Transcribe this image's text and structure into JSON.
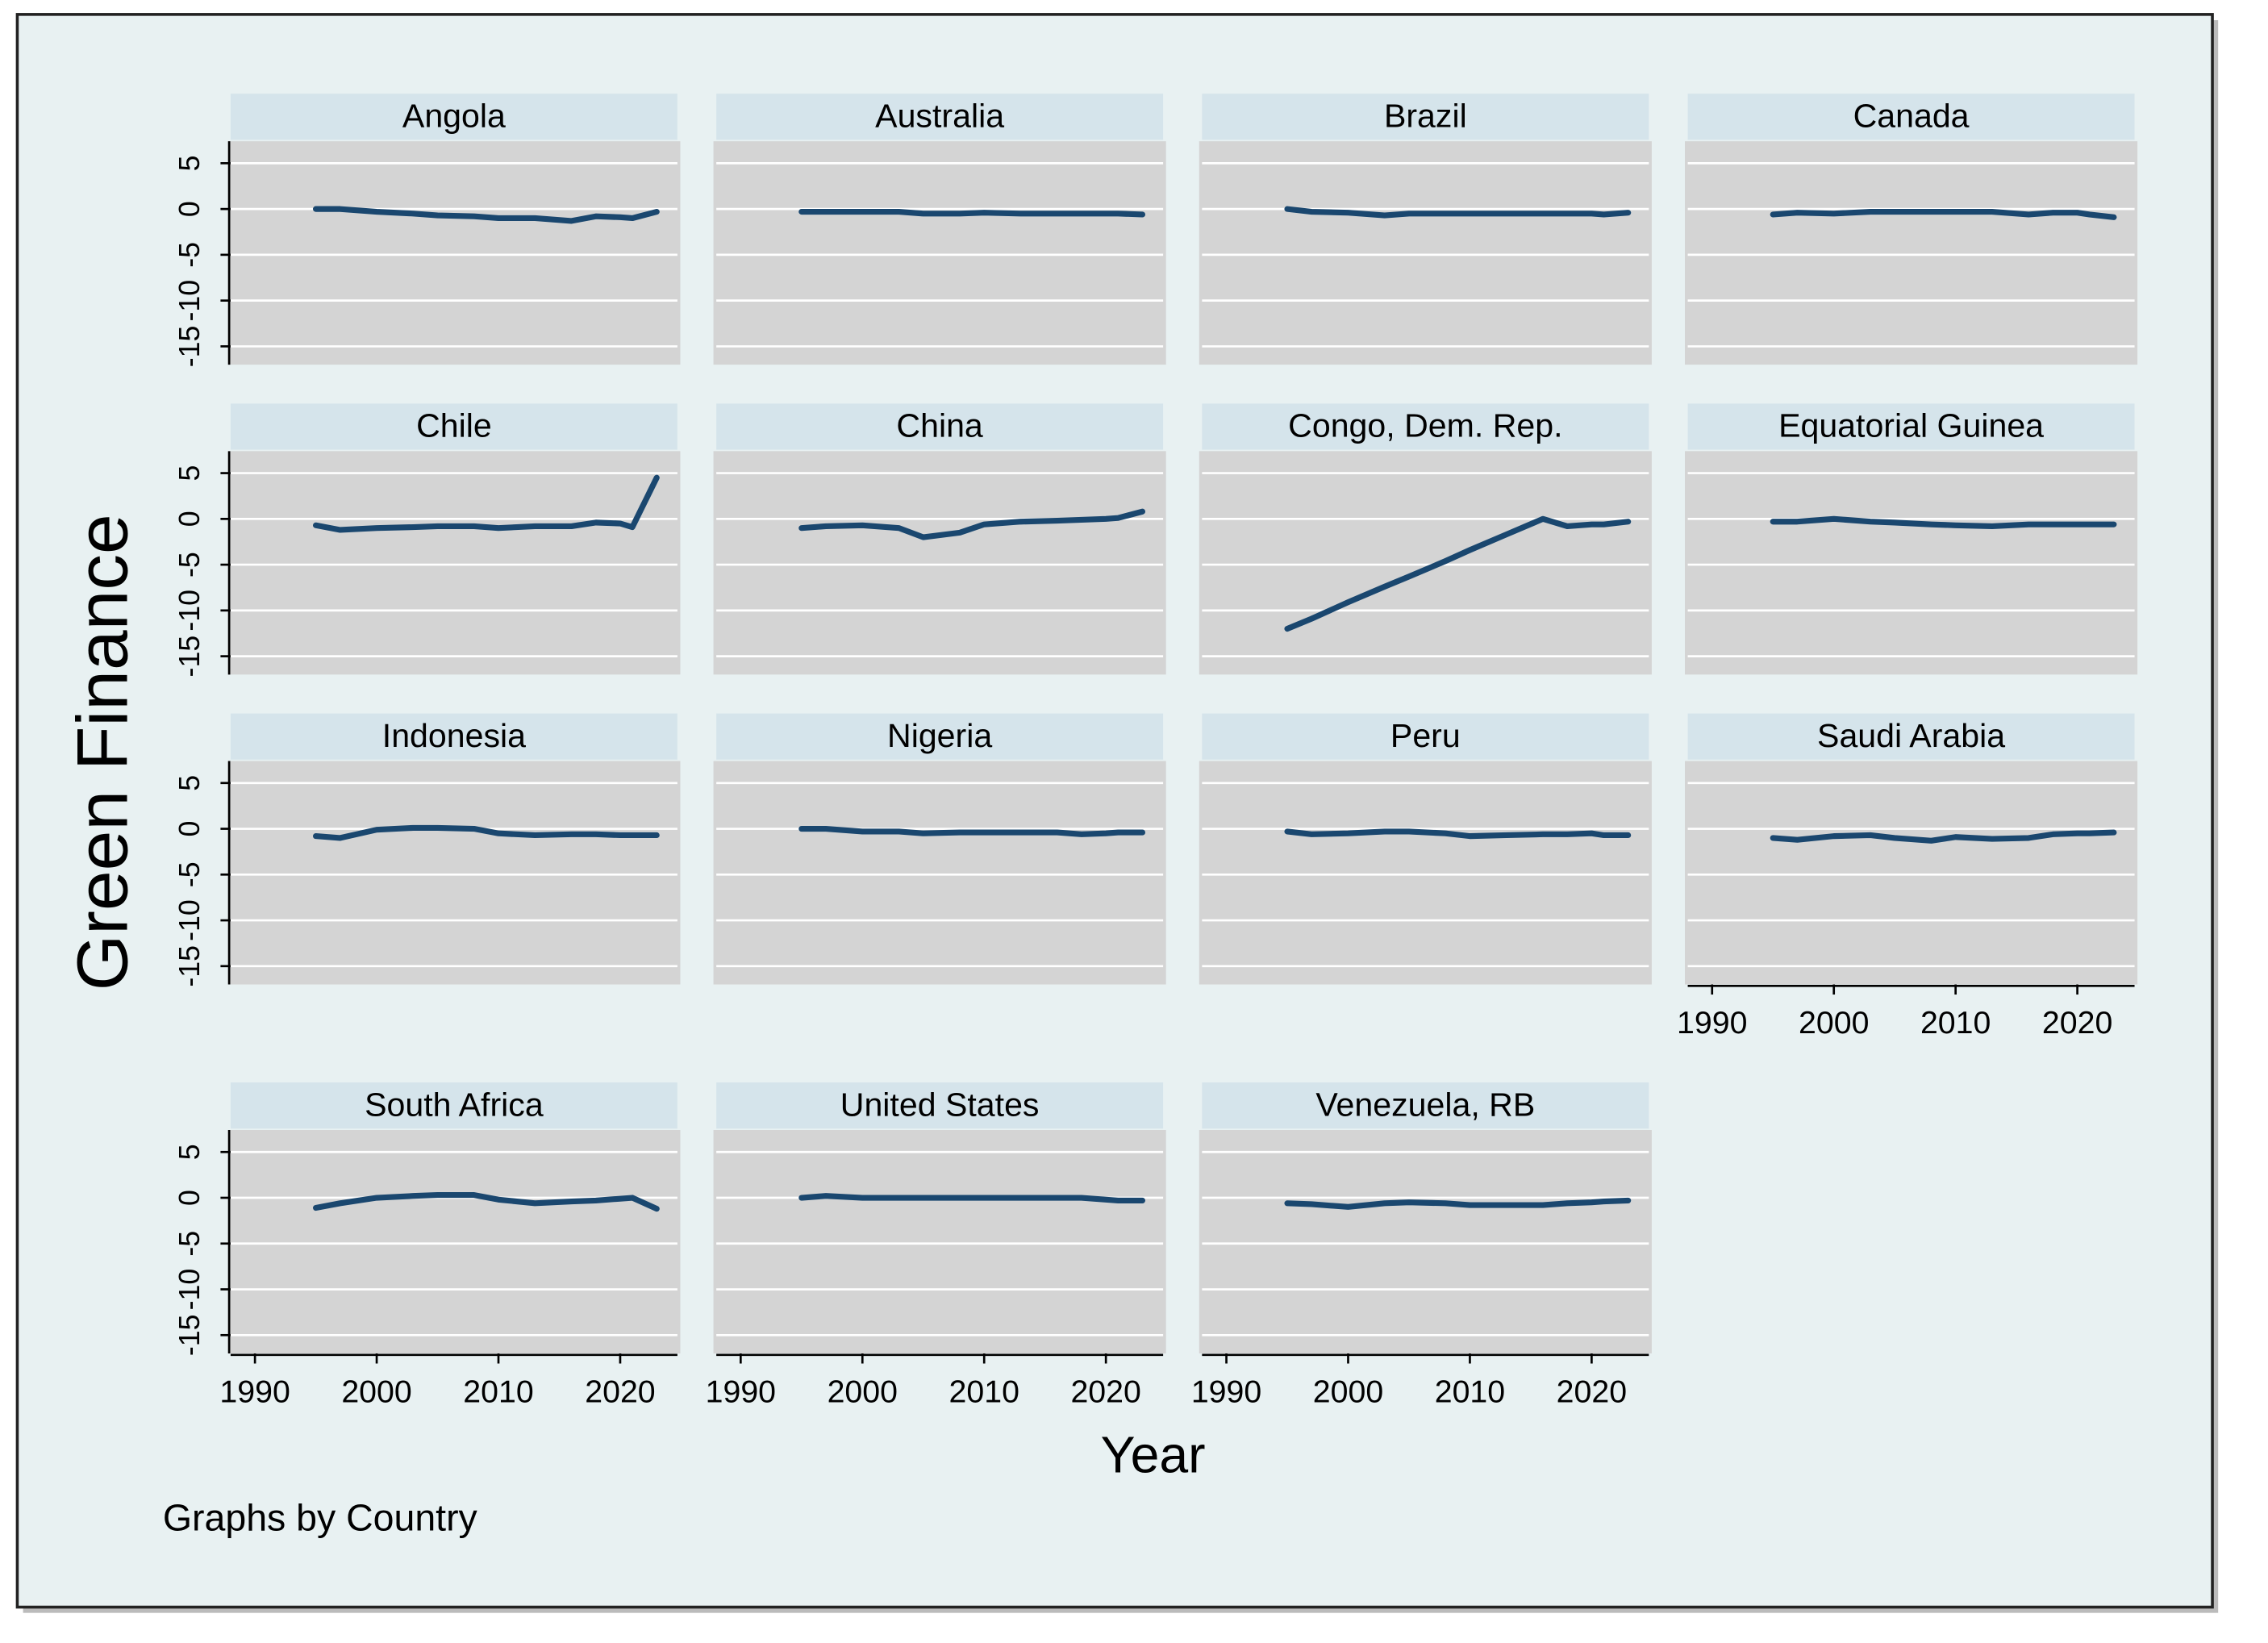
{
  "chart_data": {
    "type": "line",
    "y_label": "Green Finance",
    "x_label": "Year",
    "note": "Graphs by Country",
    "color": "#1a476f",
    "grid": true,
    "x": [
      1995,
      1997,
      2000,
      2003,
      2005,
      2008,
      2010,
      2013,
      2016,
      2018,
      2020,
      2021,
      2023
    ],
    "xlim": [
      1988,
      2024.7
    ],
    "xticks": [
      1990,
      2000,
      2010,
      2020
    ],
    "ylim": [
      -17,
      7.4
    ],
    "yticks": [
      -15,
      -10,
      -5,
      0,
      5
    ],
    "series": [
      {
        "name": "Angola",
        "values": [
          0,
          0,
          -0.3,
          -0.5,
          -0.7,
          -0.8,
          -1,
          -1,
          -1.3,
          -0.8,
          -0.9,
          -1,
          -0.3
        ]
      },
      {
        "name": "Australia",
        "values": [
          -0.3,
          -0.3,
          -0.3,
          -0.3,
          -0.5,
          -0.5,
          -0.4,
          -0.5,
          -0.5,
          -0.5,
          -0.5,
          -0.5,
          -0.6
        ]
      },
      {
        "name": "Brazil",
        "values": [
          0,
          -0.3,
          -0.4,
          -0.7,
          -0.5,
          -0.5,
          -0.5,
          -0.5,
          -0.5,
          -0.5,
          -0.5,
          -0.6,
          -0.4
        ]
      },
      {
        "name": "Canada",
        "values": [
          -0.6,
          -0.4,
          -0.5,
          -0.3,
          -0.3,
          -0.3,
          -0.3,
          -0.3,
          -0.6,
          -0.4,
          -0.4,
          -0.6,
          -0.9
        ]
      },
      {
        "name": "Chile",
        "values": [
          -0.7,
          -1.2,
          -1,
          -0.9,
          -0.8,
          -0.8,
          -1,
          -0.8,
          -0.8,
          -0.4,
          -0.5,
          -0.9,
          4.5
        ]
      },
      {
        "name": "China",
        "values": [
          -1,
          -0.8,
          -0.7,
          -1,
          -2,
          -1.5,
          -0.6,
          -0.3,
          -0.2,
          -0.1,
          0,
          0.1,
          0.8
        ]
      },
      {
        "name": "Congo, Dem. Rep.",
        "values": [
          -12,
          -10.9,
          -9.1,
          -7.4,
          -6.3,
          -4.6,
          -3.4,
          -1.7,
          0,
          -0.8,
          -0.6,
          -0.6,
          -0.3
        ]
      },
      {
        "name": "Equatorial Guinea",
        "values": [
          -0.3,
          -0.3,
          0,
          -0.3,
          -0.4,
          -0.6,
          -0.7,
          -0.8,
          -0.6,
          -0.6,
          -0.6,
          -0.6,
          -0.6
        ]
      },
      {
        "name": "Indonesia",
        "values": [
          -0.8,
          -1,
          -0.1,
          0.1,
          0.1,
          0,
          -0.5,
          -0.7,
          -0.6,
          -0.6,
          -0.7,
          -0.7,
          -0.7
        ]
      },
      {
        "name": "Nigeria",
        "values": [
          0,
          0,
          -0.3,
          -0.3,
          -0.5,
          -0.4,
          -0.4,
          -0.4,
          -0.4,
          -0.6,
          -0.5,
          -0.4,
          -0.4
        ]
      },
      {
        "name": "Peru",
        "values": [
          -0.3,
          -0.6,
          -0.5,
          -0.3,
          -0.3,
          -0.5,
          -0.8,
          -0.7,
          -0.6,
          -0.6,
          -0.5,
          -0.7,
          -0.7
        ]
      },
      {
        "name": "Saudi Arabia",
        "values": [
          -1,
          -1.2,
          -0.8,
          -0.7,
          -1,
          -1.3,
          -0.9,
          -1.1,
          -1,
          -0.6,
          -0.5,
          -0.5,
          -0.4
        ]
      },
      {
        "name": "South Africa",
        "values": [
          -1.1,
          -0.6,
          0,
          0.2,
          0.3,
          0.3,
          -0.2,
          -0.6,
          -0.4,
          -0.3,
          -0.1,
          0,
          -1.2
        ]
      },
      {
        "name": "United States",
        "values": [
          0,
          0.2,
          0,
          0,
          0,
          0,
          0,
          0,
          0,
          0,
          -0.2,
          -0.3,
          -0.3
        ]
      },
      {
        "name": "Venezuela, RB",
        "values": [
          -0.6,
          -0.7,
          -1,
          -0.6,
          -0.5,
          -0.6,
          -0.8,
          -0.8,
          -0.8,
          -0.6,
          -0.5,
          -0.4,
          -0.3
        ]
      }
    ]
  }
}
